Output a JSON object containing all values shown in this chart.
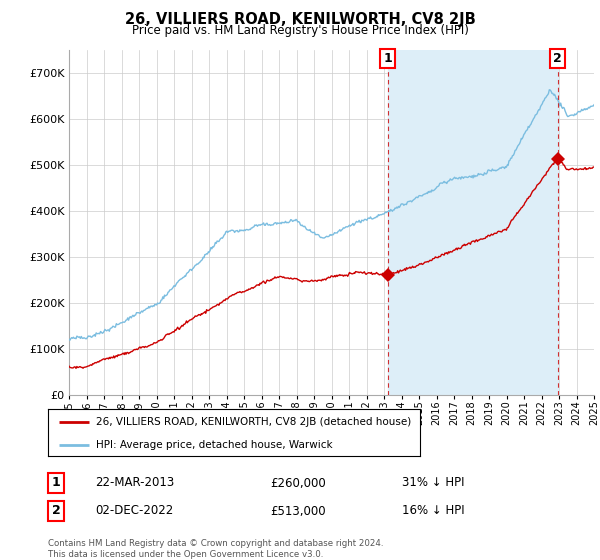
{
  "title": "26, VILLIERS ROAD, KENILWORTH, CV8 2JB",
  "subtitle": "Price paid vs. HM Land Registry's House Price Index (HPI)",
  "ylim": [
    0,
    750000
  ],
  "yticks": [
    0,
    100000,
    200000,
    300000,
    400000,
    500000,
    600000,
    700000
  ],
  "ytick_labels": [
    "£0",
    "£100K",
    "£200K",
    "£300K",
    "£400K",
    "£500K",
    "£600K",
    "£700K"
  ],
  "hpi_color": "#7bbde0",
  "hpi_fill_color": "#ddeef8",
  "price_color": "#cc0000",
  "sale1_year": 2013.22,
  "sale1_price": 260000,
  "sale2_year": 2022.92,
  "sale2_price": 513000,
  "legend_line1": "26, VILLIERS ROAD, KENILWORTH, CV8 2JB (detached house)",
  "legend_line2": "HPI: Average price, detached house, Warwick",
  "annotation1_label": "1",
  "annotation1_date": "22-MAR-2013",
  "annotation1_price": "£260,000",
  "annotation1_pct": "31% ↓ HPI",
  "annotation2_label": "2",
  "annotation2_date": "02-DEC-2022",
  "annotation2_price": "£513,000",
  "annotation2_pct": "16% ↓ HPI",
  "footer": "Contains HM Land Registry data © Crown copyright and database right 2024.\nThis data is licensed under the Open Government Licence v3.0.",
  "vline1_year": 2013.22,
  "vline2_year": 2022.92,
  "background_color": "#ffffff",
  "grid_color": "#cccccc",
  "xstart": 1995,
  "xend": 2025
}
